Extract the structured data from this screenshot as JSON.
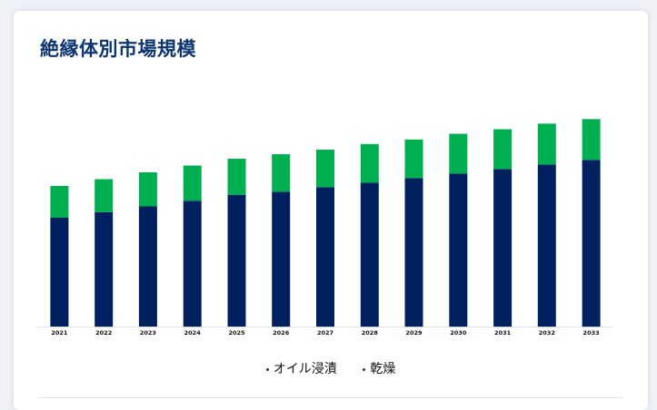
{
  "chart_data": {
    "type": "bar",
    "stacked": true,
    "title": "絶縁体別市場規模",
    "categories": [
      "2021",
      "2022",
      "2023",
      "2024",
      "2025",
      "2026",
      "2027",
      "2028",
      "2029",
      "2030",
      "2031",
      "2032",
      "2033"
    ],
    "series": [
      {
        "name": "オイル浸漬",
        "color": "#00205f",
        "values": [
          48,
          50.5,
          53,
          55.5,
          58,
          59.5,
          61.5,
          63.5,
          65.5,
          67.5,
          69.5,
          71.5,
          73.5
        ]
      },
      {
        "name": "乾燥",
        "color": "#00b050",
        "values": [
          14,
          14.5,
          15,
          15.5,
          16,
          16.5,
          16.5,
          17,
          17,
          17.5,
          17.5,
          18,
          18
        ]
      }
    ],
    "ylim": [
      0,
      100
    ],
    "grid": false,
    "y_axis_visible": false,
    "legend_position": "bottom"
  }
}
